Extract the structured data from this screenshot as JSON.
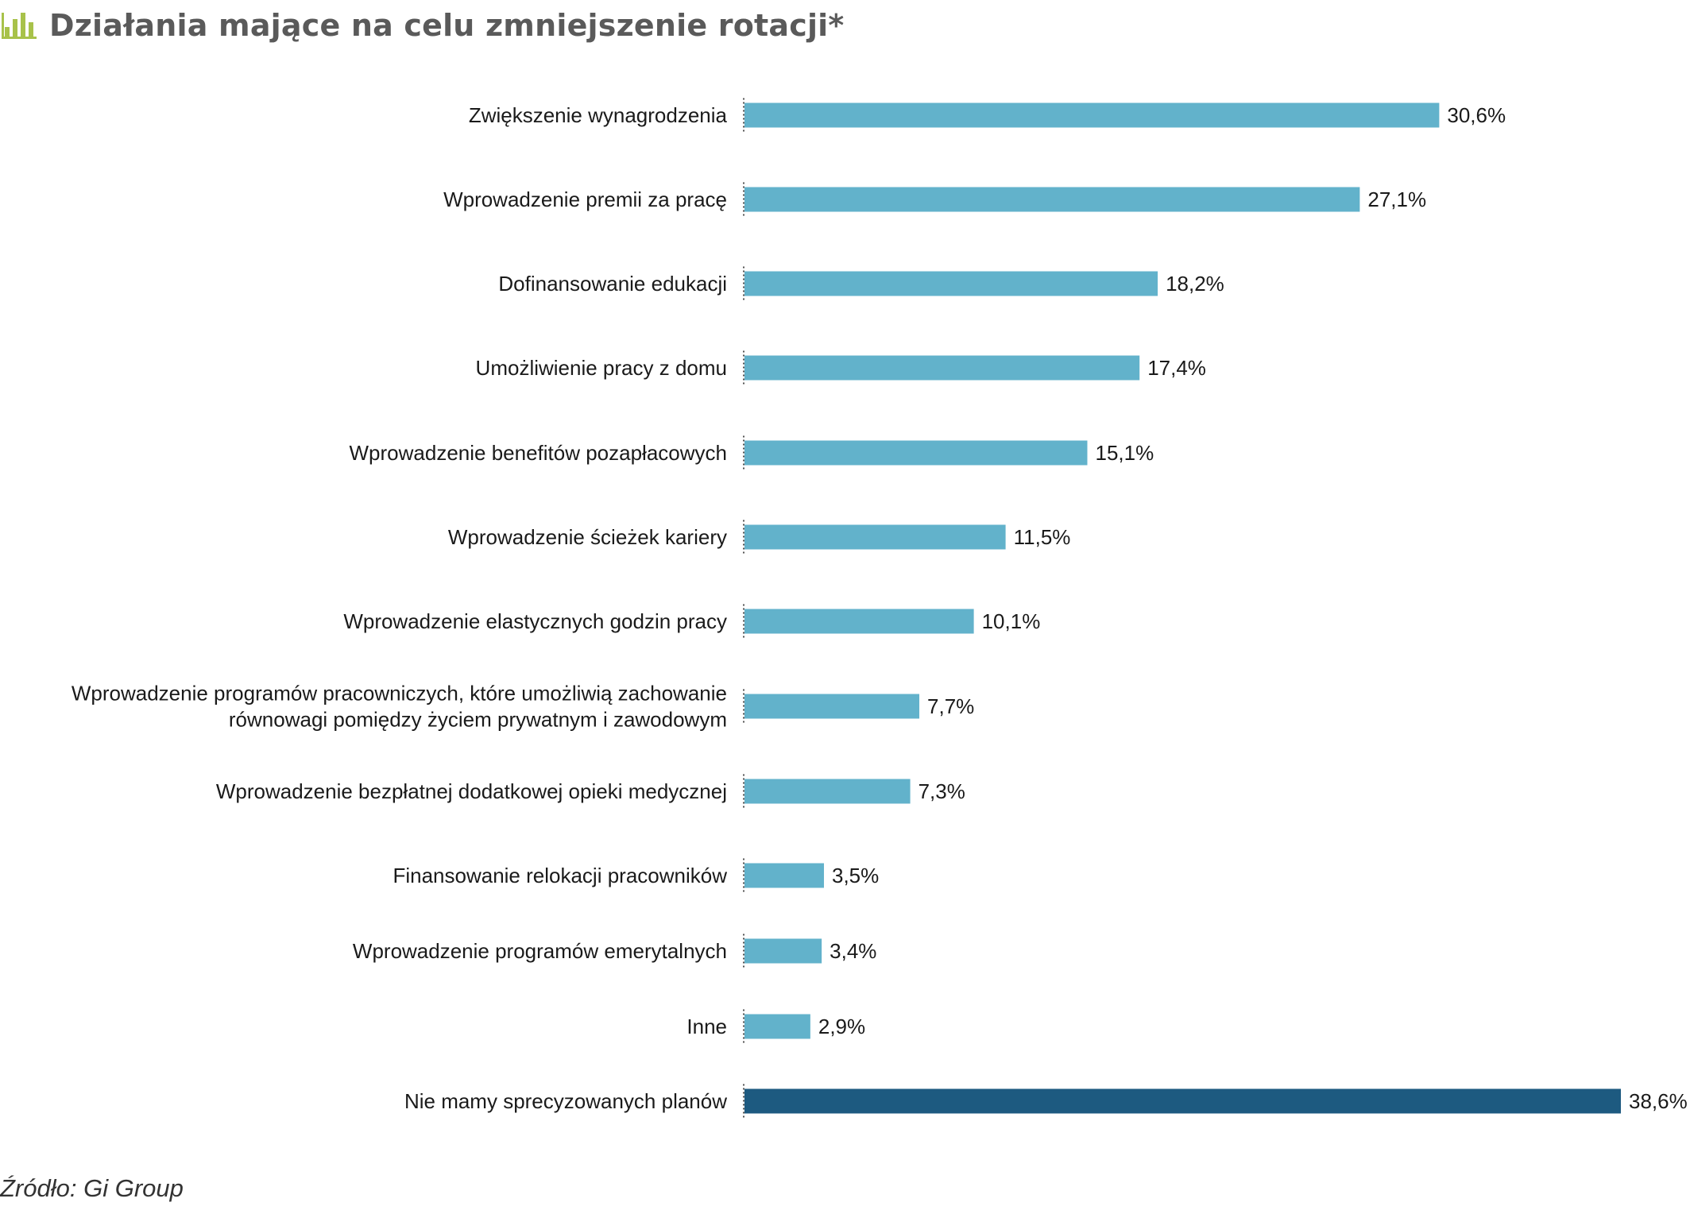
{
  "title": "Działania mające na celu zmniejszenie rotacji*",
  "source": "Źródło: Gi Group",
  "colors": {
    "bar": "#62b2cb",
    "bar_highlight": "#1d5a80",
    "title_icon": "#a8c24a",
    "title_text": "#5a5a5a",
    "axis": "#555555"
  },
  "icons": {
    "title": "bar-chart-icon"
  },
  "chart_data": {
    "type": "bar",
    "orientation": "horizontal",
    "categories": [
      [
        "Zwiększenie wynagrodzenia"
      ],
      [
        "Wprowadzenie premii za pracę"
      ],
      [
        "Dofinansowanie edukacji"
      ],
      [
        "Umożliwienie pracy z domu"
      ],
      [
        "Wprowadzenie benefitów pozapłacowych"
      ],
      [
        "Wprowadzenie ścieżek kariery"
      ],
      [
        "Wprowadzenie elastycznych godzin pracy"
      ],
      [
        "Wprowadzenie programów pracowniczych, które umożliwią zachowanie",
        "równowagi pomiędzy życiem prywatnym i zawodowym"
      ],
      [
        "Wprowadzenie bezpłatnej dodatkowej opieki medycznej"
      ],
      [
        "Finansowanie relokacji pracowników"
      ],
      [
        "Wprowadzenie programów emerytalnych"
      ],
      [
        "Inne"
      ],
      [
        "Nie mamy sprecyzowanych planów"
      ]
    ],
    "values": [
      30.6,
      27.1,
      18.2,
      17.4,
      15.1,
      11.5,
      10.1,
      7.7,
      7.3,
      3.5,
      3.4,
      2.9,
      38.6
    ],
    "value_labels": [
      "30,6%",
      "27,1%",
      "18,2%",
      "17,4%",
      "15,1%",
      "11,5%",
      "10,1%",
      "7,7%",
      "7,3%",
      "3,5%",
      "3,4%",
      "2,9%",
      "38,6%"
    ],
    "highlight_index": 12,
    "xlim": [
      0,
      38.6
    ],
    "grid": false,
    "legend": "none"
  }
}
